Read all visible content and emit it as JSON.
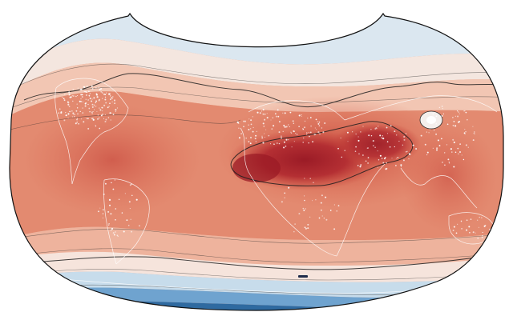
{
  "map": {
    "projection": "rotated-pole-kidney",
    "colormap": "RdBu_r",
    "colors": {
      "ocean_cold_dark": "#2f6aa0",
      "ocean_cold": "#6fa3cf",
      "ocean_cool": "#c7dceb",
      "near_zero": "#f6ede8",
      "warm_light": "#f2c2ad",
      "warm": "#e6896d",
      "hot": "#c7473c",
      "very_hot": "#9b1b26",
      "contour": "#2b2b2b",
      "coastline": "#ffffff"
    },
    "features": [
      "filled-contours",
      "contour-lines",
      "coastlines",
      "station-dots",
      "map-outline"
    ]
  }
}
